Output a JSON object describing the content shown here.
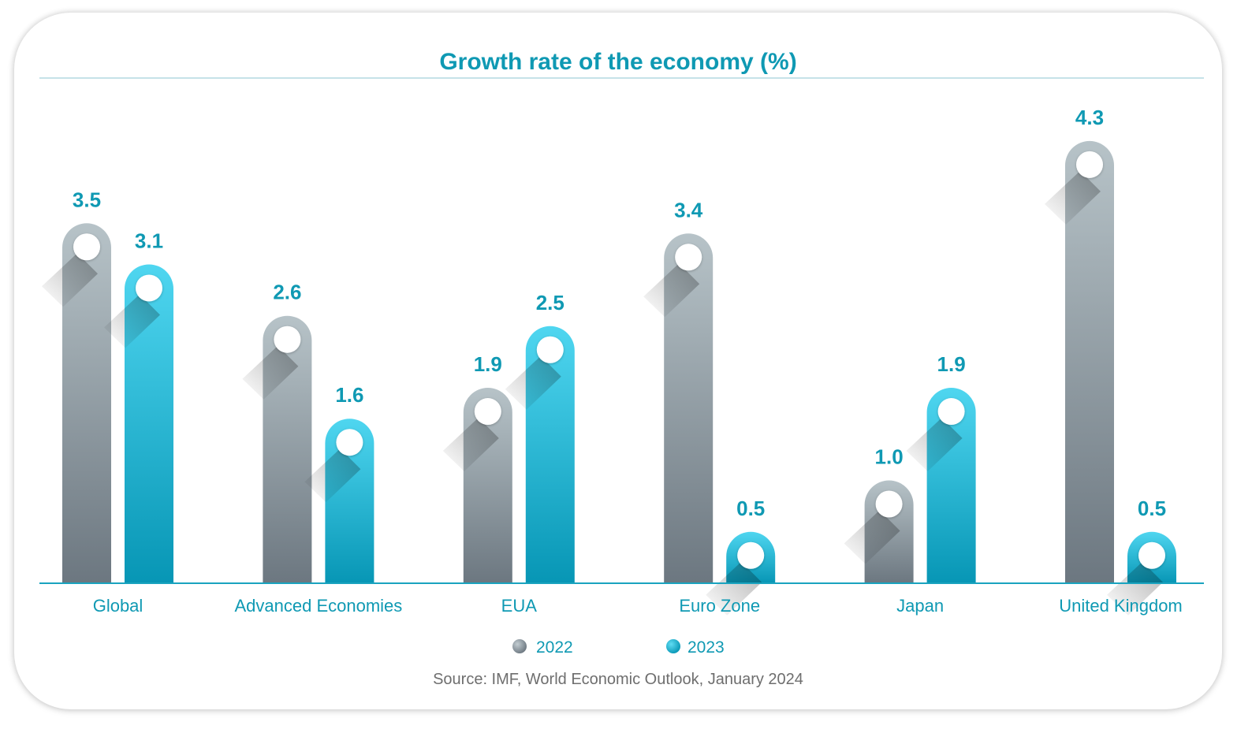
{
  "chart_data": {
    "type": "bar",
    "title": "Growth rate of the economy (%)",
    "categories": [
      "Global",
      "Advanced Economies",
      "EUA",
      "Euro Zone",
      "Japan",
      "United Kingdom"
    ],
    "series": [
      {
        "name": "2022",
        "values": [
          3.5,
          2.6,
          1.9,
          3.4,
          1.0,
          4.3
        ],
        "labels": [
          "3.5",
          "2.6",
          "1.9",
          "3.4",
          "1.0",
          "4.3"
        ],
        "color": "#7a8690"
      },
      {
        "name": "2023",
        "values": [
          3.1,
          1.6,
          2.5,
          0.5,
          1.9,
          0.5
        ],
        "labels": [
          "3.1",
          "1.6",
          "2.5",
          "0.5",
          "1.9",
          "0.5"
        ],
        "color": "#0fa3c2"
      }
    ],
    "ylim": [
      0,
      4.3
    ],
    "grid": false,
    "legend": "bottom",
    "source": "Source: IMF, World Economic Outlook, January 2024"
  }
}
